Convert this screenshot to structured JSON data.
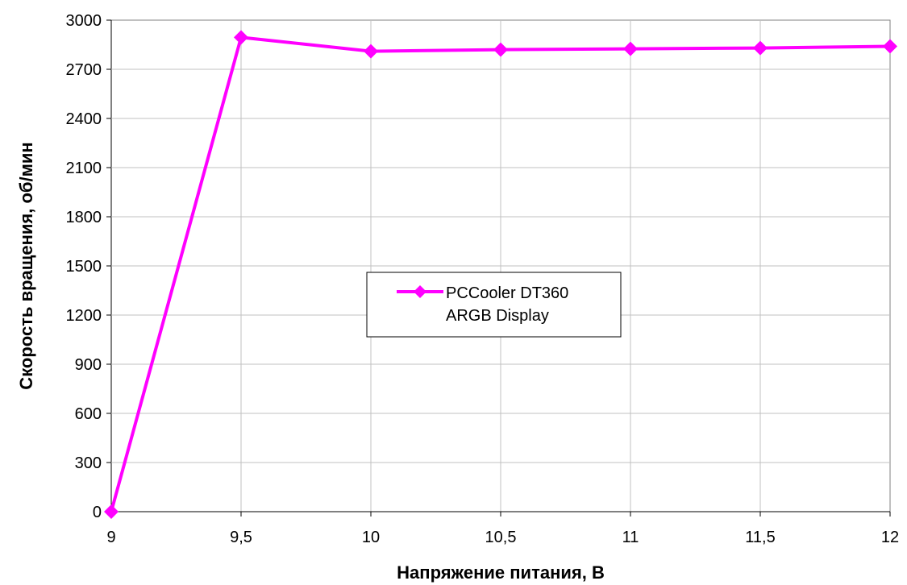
{
  "chart_data": {
    "type": "line",
    "title": "",
    "xlabel": "Напряжение питания, В",
    "ylabel": "Скорость вращения, об/мин",
    "x": [
      9,
      9.5,
      10,
      10.5,
      11,
      11.5,
      12
    ],
    "x_tick_labels": [
      "9",
      "9,5",
      "10",
      "10,5",
      "11",
      "11,5",
      "12"
    ],
    "y_ticks": [
      0,
      300,
      600,
      900,
      1200,
      1500,
      1800,
      2100,
      2400,
      2700,
      3000
    ],
    "xlim": [
      9,
      12
    ],
    "ylim": [
      0,
      3000
    ],
    "grid": true,
    "legend_position": "center",
    "series": [
      {
        "name": "PCCooler DT360 ARGB Display",
        "legend_lines": [
          "PCCooler DT360",
          "ARGB Display"
        ],
        "color": "#ff00ff",
        "marker": "diamond",
        "values": [
          0,
          2895,
          2810,
          2820,
          2825,
          2830,
          2840
        ]
      }
    ]
  }
}
